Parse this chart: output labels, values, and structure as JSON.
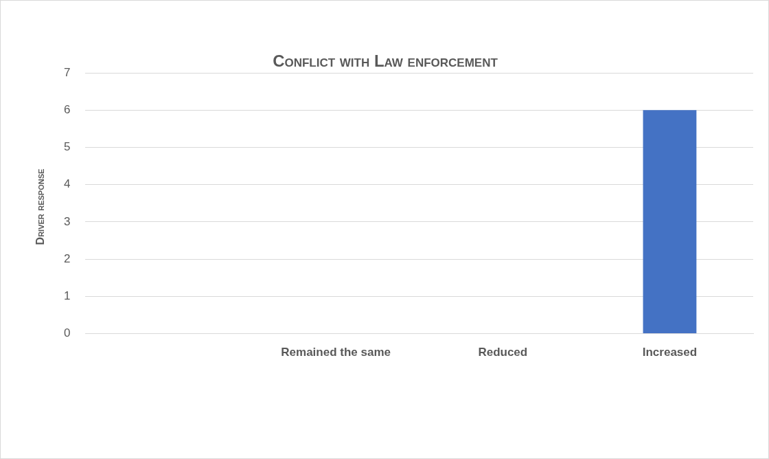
{
  "chart_data": {
    "type": "bar",
    "title": "Conflict with Law enforcement",
    "ylabel": "Driver response",
    "categories": [
      null,
      "Remained the same",
      "Reduced",
      "Increased"
    ],
    "values": [
      0,
      0,
      0,
      6
    ],
    "color": "#4472c4",
    "ylim": [
      0,
      7
    ],
    "yticks": [
      0,
      1,
      2,
      3,
      4,
      5,
      6,
      7
    ],
    "grid": "y",
    "legend": false
  }
}
